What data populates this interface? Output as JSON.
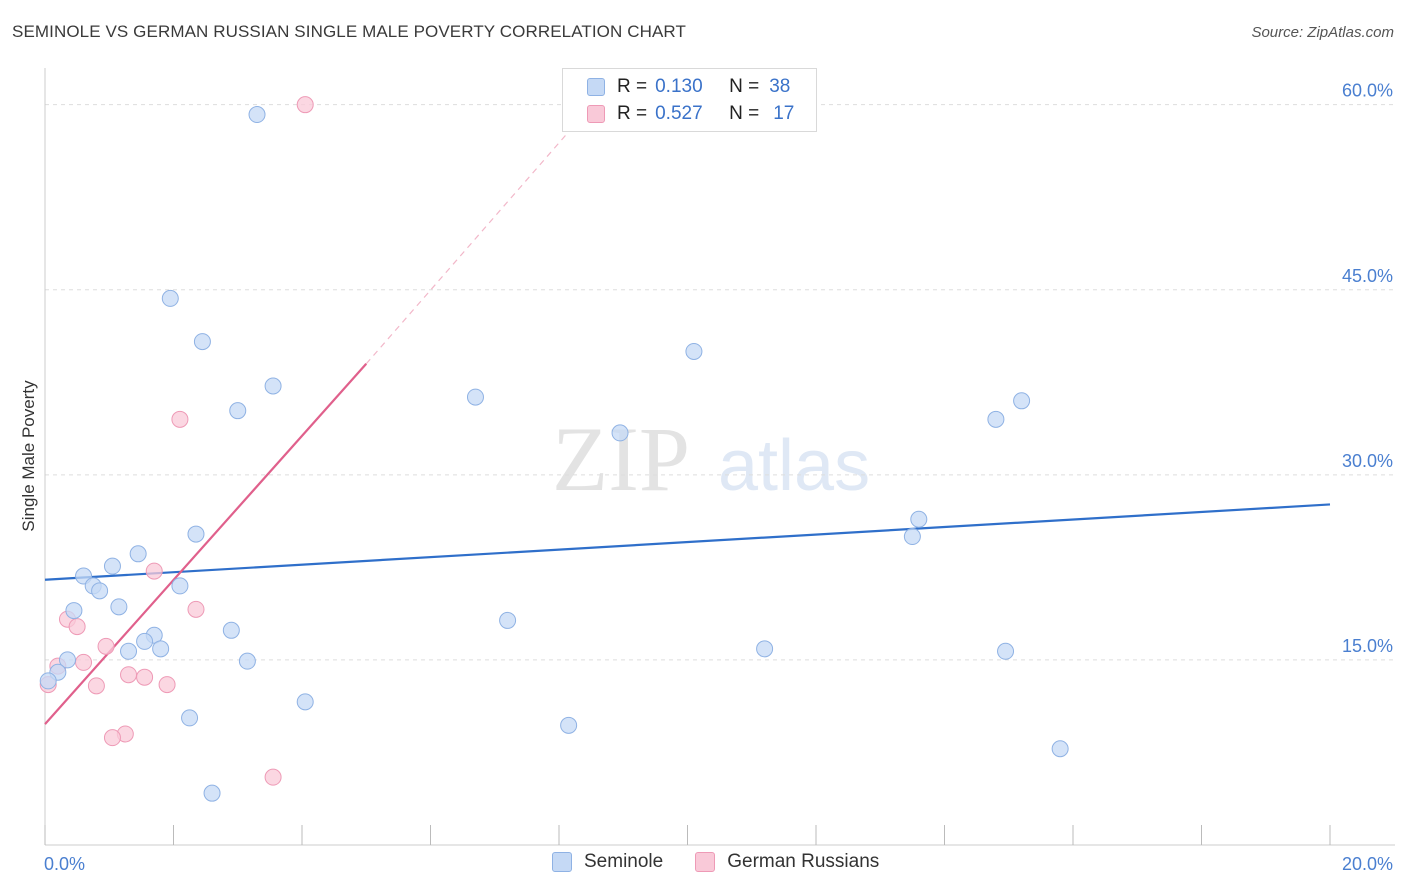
{
  "title": "SEMINOLE VS GERMAN RUSSIAN SINGLE MALE POVERTY CORRELATION CHART",
  "source": "Source: ZipAtlas.com",
  "watermark": {
    "zip": "ZIP",
    "atlas": "atlas"
  },
  "colors": {
    "seminole_fill": "#c5d9f5",
    "seminole_stroke": "#8fb2e4",
    "seminole_line": "#2f6fca",
    "german_fill": "#f9c9d8",
    "german_stroke": "#ee9ab6",
    "german_line": "#e0608c",
    "tick_label": "#4a7fd0",
    "grid": "#dddddd"
  },
  "legend": {
    "rows": [
      {
        "r_label": "R =",
        "r_value": "0.130",
        "n_label": "N =",
        "n_value": "38"
      },
      {
        "r_label": "R =",
        "r_value": "0.527",
        "n_label": "N =",
        "n_value": "17"
      }
    ]
  },
  "chart_data": {
    "type": "scatter",
    "title": "SEMINOLE VS GERMAN RUSSIAN SINGLE MALE POVERTY CORRELATION CHART",
    "xlabel": "",
    "ylabel": "Single Male Poverty",
    "xlim": [
      0,
      20
    ],
    "ylim": [
      0,
      62
    ],
    "x_tick_labels": [
      {
        "value": 0,
        "label": "0.0%"
      },
      {
        "value": 20,
        "label": "20.0%"
      }
    ],
    "y_tick_labels": [
      {
        "value": 15,
        "label": "15.0%"
      },
      {
        "value": 30,
        "label": "30.0%"
      },
      {
        "value": 45,
        "label": "45.0%"
      },
      {
        "value": 60,
        "label": "60.0%"
      }
    ],
    "x_minor_ticks": [
      0,
      2,
      4,
      6,
      8,
      10,
      12,
      14,
      16,
      18,
      20
    ],
    "series": [
      {
        "name": "Seminole",
        "r": 0.13,
        "n": 38,
        "trendline": {
          "x0": 0,
          "y0": 21.5,
          "x1": 20,
          "y1": 27.6
        },
        "points": [
          {
            "x": 3.3,
            "y": 59.2
          },
          {
            "x": 1.95,
            "y": 44.3
          },
          {
            "x": 2.45,
            "y": 40.8
          },
          {
            "x": 10.1,
            "y": 40.0
          },
          {
            "x": 3.55,
            "y": 37.2
          },
          {
            "x": 6.7,
            "y": 36.3
          },
          {
            "x": 15.2,
            "y": 36.0
          },
          {
            "x": 3.0,
            "y": 35.2
          },
          {
            "x": 14.8,
            "y": 34.5
          },
          {
            "x": 8.95,
            "y": 33.4
          },
          {
            "x": 13.6,
            "y": 26.4
          },
          {
            "x": 2.35,
            "y": 25.2
          },
          {
            "x": 13.5,
            "y": 25.0
          },
          {
            "x": 1.45,
            "y": 23.6
          },
          {
            "x": 1.05,
            "y": 22.6
          },
          {
            "x": 0.6,
            "y": 21.8
          },
          {
            "x": 0.75,
            "y": 21.0
          },
          {
            "x": 2.1,
            "y": 21.0
          },
          {
            "x": 0.85,
            "y": 20.6
          },
          {
            "x": 1.15,
            "y": 19.3
          },
          {
            "x": 0.45,
            "y": 19.0
          },
          {
            "x": 7.2,
            "y": 18.2
          },
          {
            "x": 2.9,
            "y": 17.4
          },
          {
            "x": 1.7,
            "y": 17.0
          },
          {
            "x": 1.55,
            "y": 16.5
          },
          {
            "x": 1.8,
            "y": 15.9
          },
          {
            "x": 1.3,
            "y": 15.7
          },
          {
            "x": 11.2,
            "y": 15.9
          },
          {
            "x": 14.95,
            "y": 15.7
          },
          {
            "x": 0.35,
            "y": 15.0
          },
          {
            "x": 3.15,
            "y": 14.9
          },
          {
            "x": 0.2,
            "y": 14.0
          },
          {
            "x": 0.05,
            "y": 13.3
          },
          {
            "x": 4.05,
            "y": 11.6
          },
          {
            "x": 2.25,
            "y": 10.3
          },
          {
            "x": 8.15,
            "y": 9.7
          },
          {
            "x": 15.8,
            "y": 7.8
          },
          {
            "x": 2.6,
            "y": 4.2
          }
        ]
      },
      {
        "name": "German Russians",
        "r": 0.527,
        "n": 17,
        "trendline": {
          "x0": 0,
          "y0": 9.8,
          "x1": 5.0,
          "y1": 39.0
        },
        "trendline_extension": {
          "x0": 5.0,
          "y0": 39.0,
          "x1": 8.1,
          "y1": 57.5
        },
        "points": [
          {
            "x": 4.05,
            "y": 60.0
          },
          {
            "x": 2.1,
            "y": 34.5
          },
          {
            "x": 1.7,
            "y": 22.2
          },
          {
            "x": 2.35,
            "y": 19.1
          },
          {
            "x": 0.35,
            "y": 18.3
          },
          {
            "x": 0.5,
            "y": 17.7
          },
          {
            "x": 0.95,
            "y": 16.1
          },
          {
            "x": 0.6,
            "y": 14.8
          },
          {
            "x": 0.2,
            "y": 14.5
          },
          {
            "x": 1.3,
            "y": 13.8
          },
          {
            "x": 1.55,
            "y": 13.6
          },
          {
            "x": 0.05,
            "y": 13.0
          },
          {
            "x": 0.8,
            "y": 12.9
          },
          {
            "x": 1.9,
            "y": 13.0
          },
          {
            "x": 1.25,
            "y": 9.0
          },
          {
            "x": 1.05,
            "y": 8.7
          },
          {
            "x": 3.55,
            "y": 5.5
          }
        ]
      }
    ]
  },
  "bottom_legend": [
    {
      "label": "Seminole"
    },
    {
      "label": "German Russians"
    }
  ]
}
